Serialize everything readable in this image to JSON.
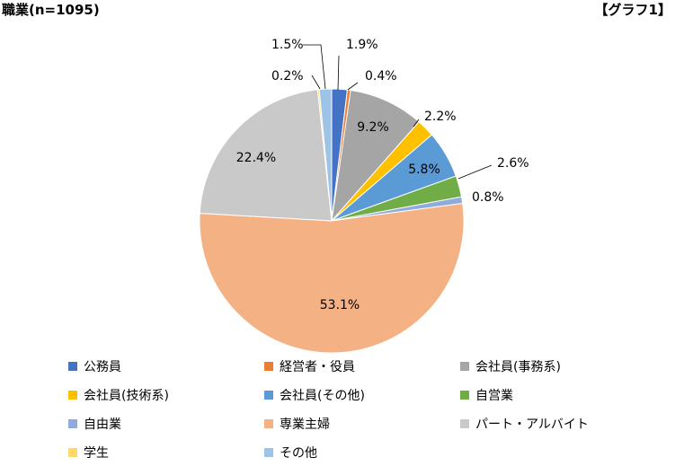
{
  "header": {
    "title": "職業(n=1095)",
    "tag": "【グラフ1】"
  },
  "chart_data": {
    "type": "pie",
    "title": "職業(n=1095)",
    "start": "top",
    "direction": "clockwise",
    "legend_position": "bottom",
    "slices": [
      {
        "label": "公務員",
        "value": 1.9,
        "display": "1.9%",
        "color": "#4472C4"
      },
      {
        "label": "経営者・役員",
        "value": 0.4,
        "display": "0.4%",
        "color": "#ED7D31"
      },
      {
        "label": "会社員(事務系)",
        "value": 9.2,
        "display": "9.2%",
        "color": "#A5A5A5"
      },
      {
        "label": "会社員(技術系)",
        "value": 2.2,
        "display": "2.2%",
        "color": "#FFC000"
      },
      {
        "label": "会社員(その他)",
        "value": 5.8,
        "display": "5.8%",
        "color": "#5B9BD5"
      },
      {
        "label": "自営業",
        "value": 2.6,
        "display": "2.6%",
        "color": "#70AD47"
      },
      {
        "label": "自由業",
        "value": 0.8,
        "display": "0.8%",
        "color": "#8FAADC"
      },
      {
        "label": "専業主婦",
        "value": 53.1,
        "display": "53.1%",
        "color": "#F4B183"
      },
      {
        "label": "パート・アルバイト",
        "value": 22.4,
        "display": "22.4%",
        "color": "#C9C9C9"
      },
      {
        "label": "学生",
        "value": 0.2,
        "display": "0.2%",
        "color": "#FFD966"
      },
      {
        "label": "その他",
        "value": 1.5,
        "display": "1.5%",
        "color": "#9DC3E6"
      }
    ]
  }
}
